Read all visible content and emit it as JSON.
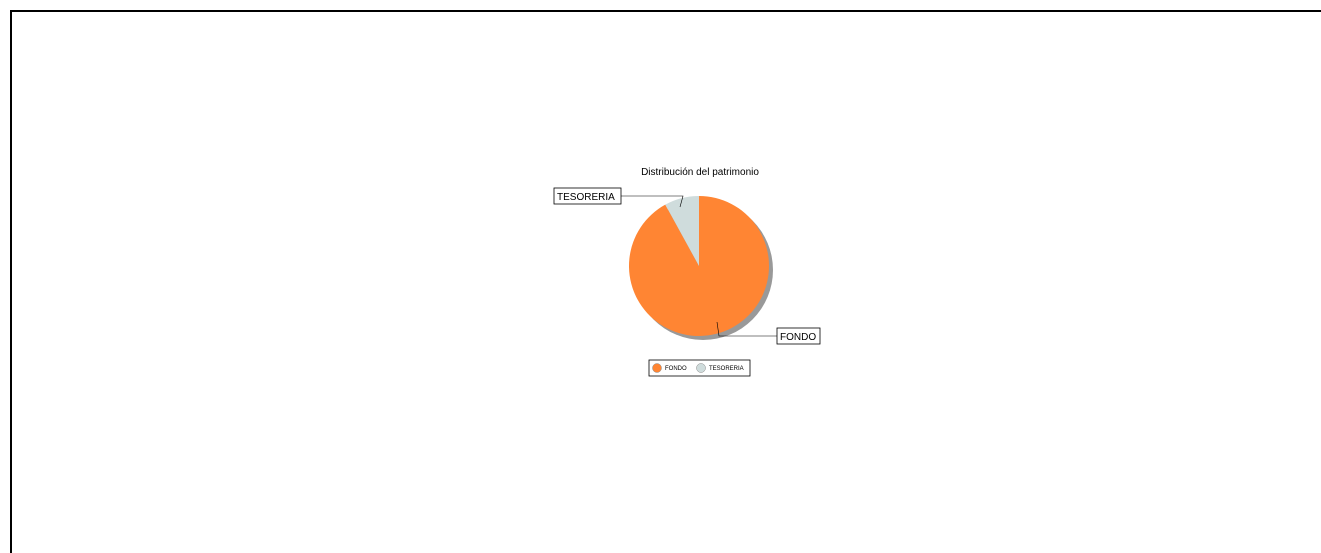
{
  "chart_data": {
    "type": "pie",
    "title": "Distribución del patrimonio",
    "slices": [
      {
        "label": "FONDO",
        "value": 92,
        "color": "#ff8533"
      },
      {
        "label": "TESORERIA",
        "value": 8,
        "color": "#cfdcdc"
      }
    ],
    "legend": {
      "placement": "bottom",
      "items": [
        "FONDO",
        "TESORERIA"
      ]
    }
  }
}
